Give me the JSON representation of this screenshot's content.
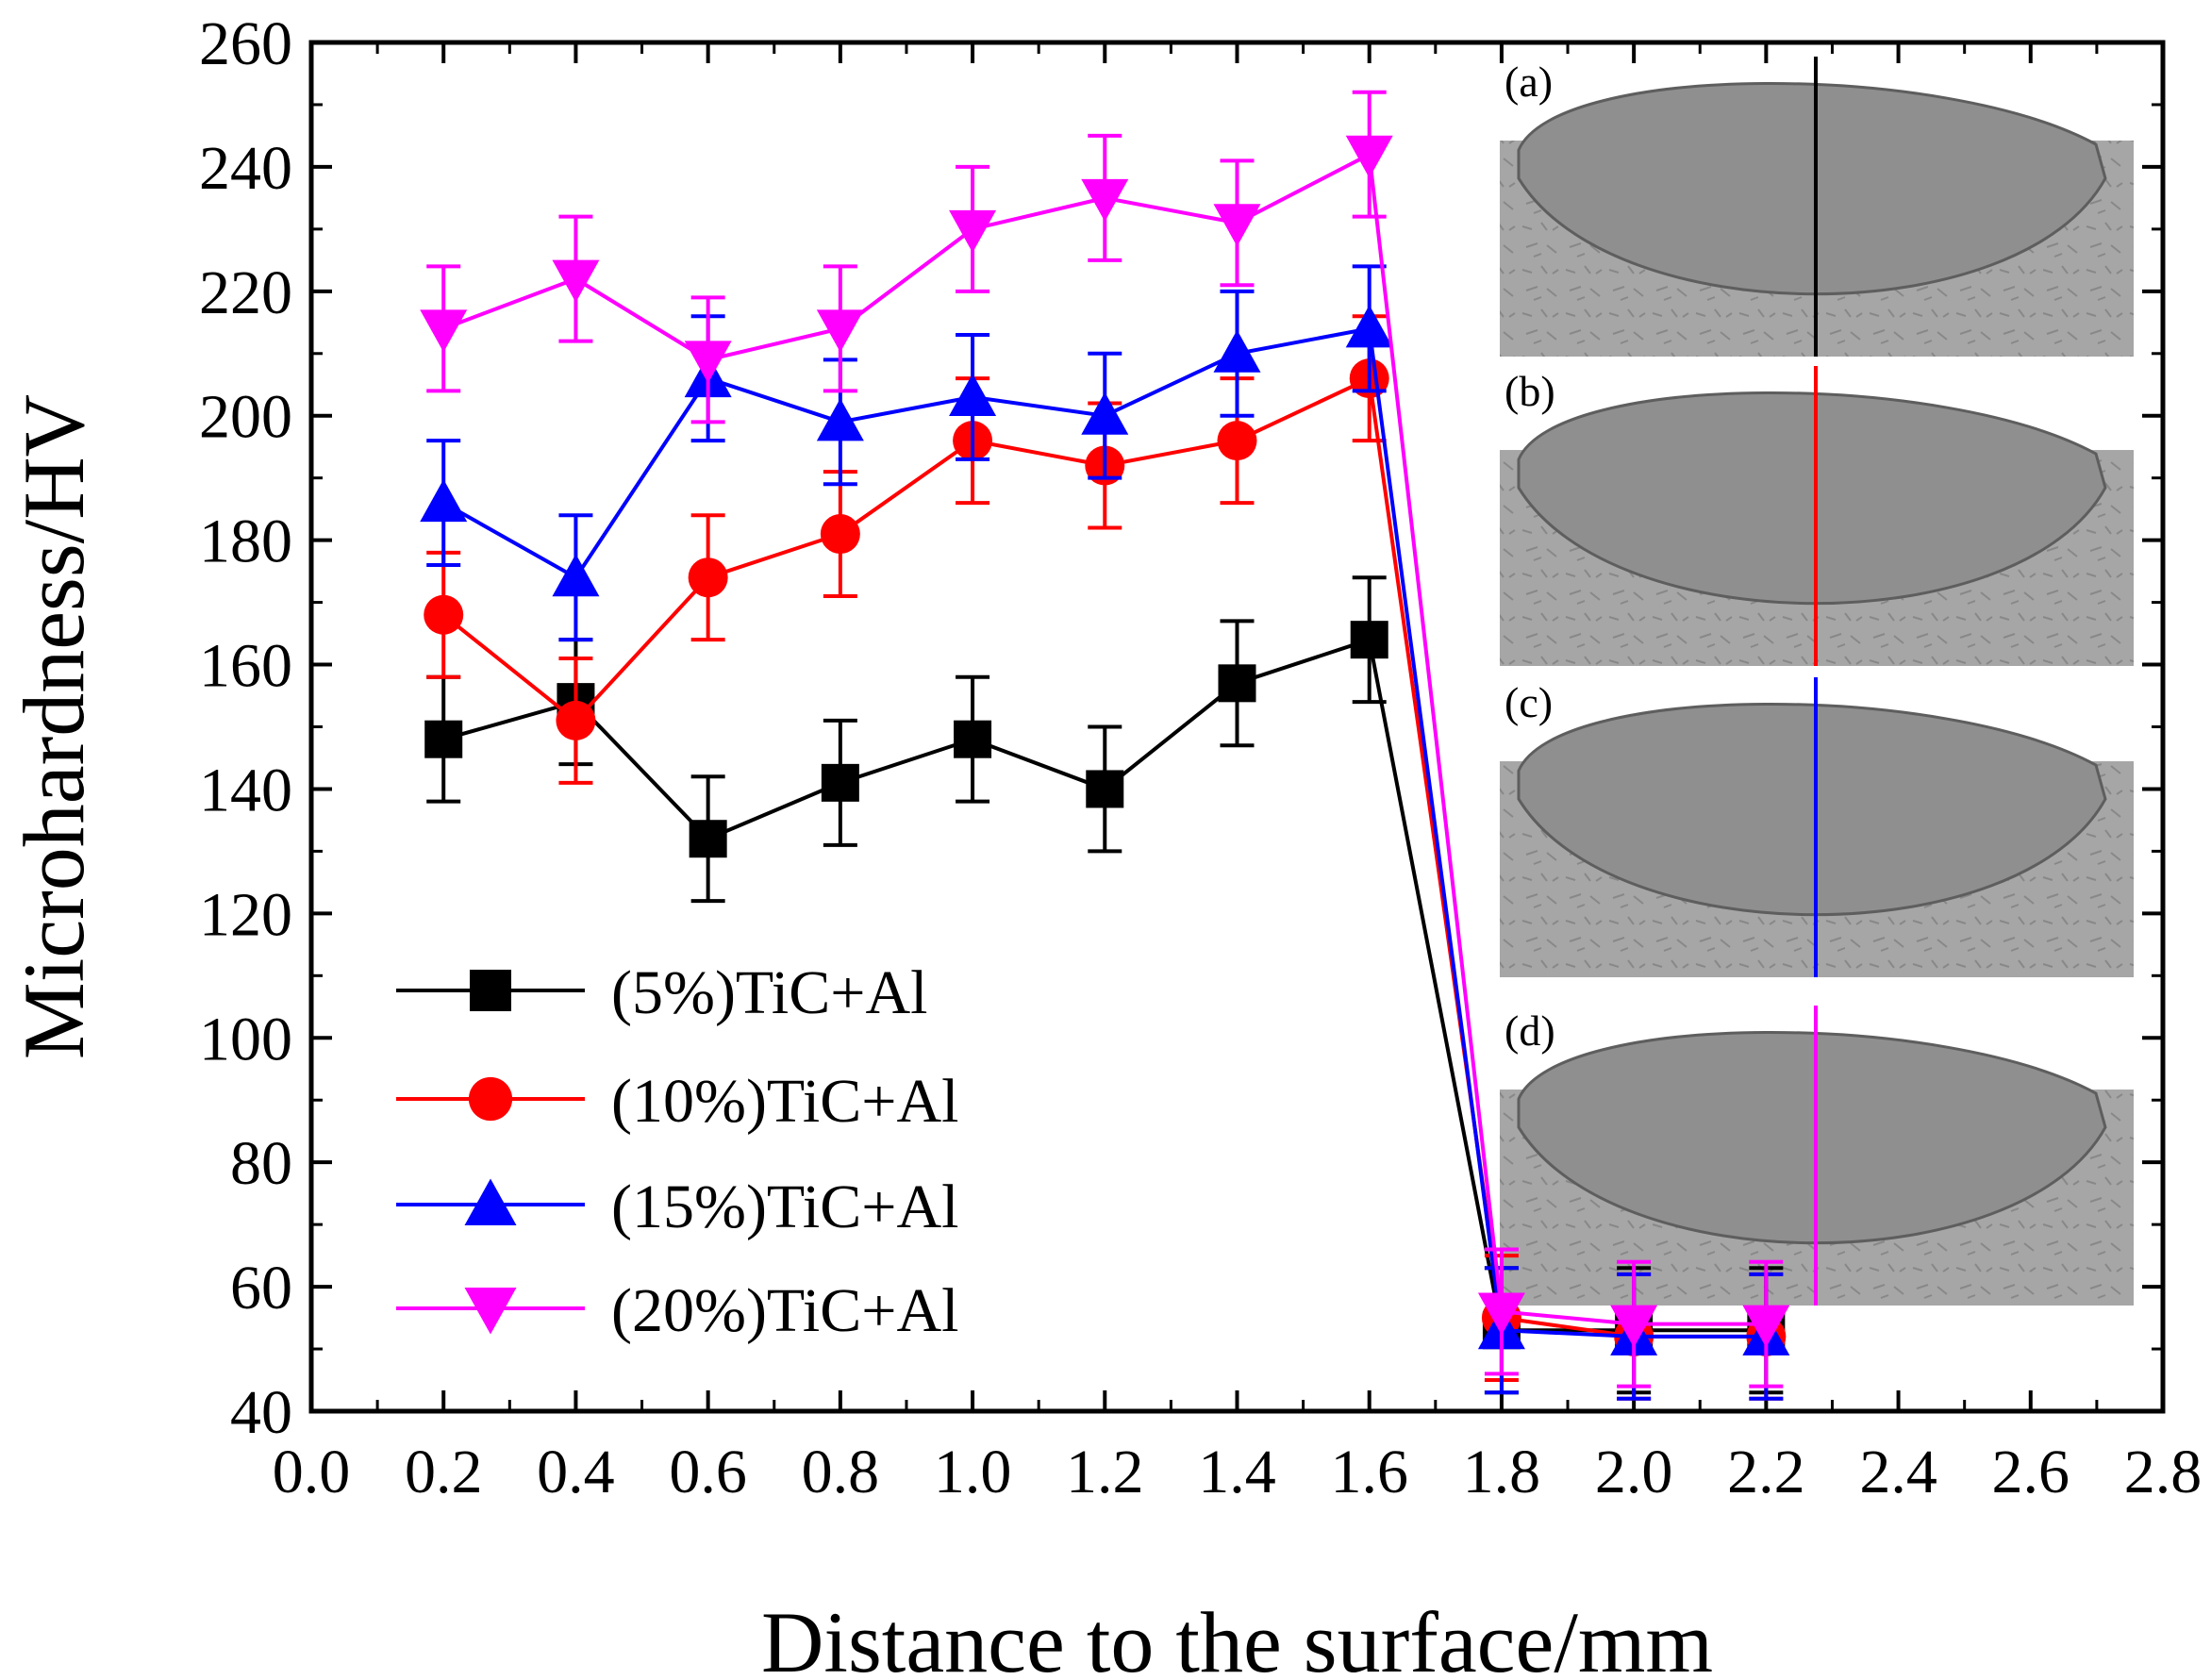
{
  "chart_data": {
    "type": "line",
    "xlabel": "Distance to the surface/mm",
    "ylabel": "Microhardness/HV",
    "xlim": [
      0.0,
      2.8
    ],
    "ylim": [
      40,
      260
    ],
    "xticks": [
      "0.0",
      "0.2",
      "0.4",
      "0.6",
      "0.8",
      "1.0",
      "1.2",
      "1.4",
      "1.6",
      "1.8",
      "2.0",
      "2.2",
      "2.4",
      "2.6",
      "2.8"
    ],
    "yticks": [
      "40",
      "60",
      "80",
      "100",
      "120",
      "140",
      "160",
      "180",
      "200",
      "220",
      "240",
      "260"
    ],
    "x": [
      0.2,
      0.4,
      0.6,
      0.8,
      1.0,
      1.2,
      1.4,
      1.6,
      1.8,
      2.0,
      2.2
    ],
    "error": 10,
    "grid": false,
    "legend_position": "lower-left",
    "series": [
      {
        "name": "(5%)TiC+Al",
        "color": "#000000",
        "marker": "square",
        "values": [
          148,
          154,
          132,
          141,
          148,
          140,
          157,
          164,
          53,
          53,
          53
        ]
      },
      {
        "name": "(10%)TiC+Al",
        "color": "#ff0000",
        "marker": "circle",
        "values": [
          168,
          151,
          174,
          181,
          196,
          192,
          196,
          206,
          55,
          52,
          52
        ]
      },
      {
        "name": "(15%)TiC+Al",
        "color": "#0000ff",
        "marker": "triangle-up",
        "values": [
          186,
          174,
          206,
          199,
          203,
          200,
          210,
          214,
          53,
          52,
          52
        ]
      },
      {
        "name": "(20%)TiC+Al",
        "color": "#ff00ff",
        "marker": "triangle-down",
        "values": [
          214,
          222,
          209,
          214,
          230,
          235,
          231,
          242,
          56,
          54,
          54
        ]
      }
    ],
    "inset_panels": [
      {
        "label": "(a)",
        "line_color": "#000000"
      },
      {
        "label": "(b)",
        "line_color": "#ff0000"
      },
      {
        "label": "(c)",
        "line_color": "#0000ff"
      },
      {
        "label": "(d)",
        "line_color": "#ff00ff"
      }
    ]
  }
}
